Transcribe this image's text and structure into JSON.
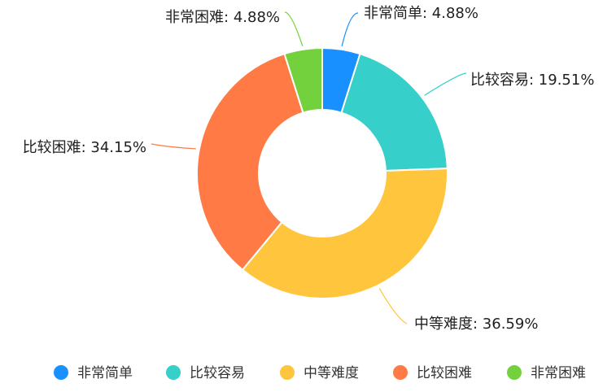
{
  "chart_data": {
    "type": "pie",
    "style": "donut",
    "categories": [
      "非常简单",
      "比较容易",
      "中等难度",
      "比较困难",
      "非常困难"
    ],
    "values": [
      4.88,
      19.51,
      36.59,
      34.15,
      4.88
    ],
    "labels": [
      "非常简单: 4.88%",
      "比较容易: 19.51%",
      "中等难度: 36.59%",
      "比较困难: 34.15%",
      "非常困难: 4.88%"
    ],
    "colors": [
      "#1890ff",
      "#36cfc9",
      "#ffc53d",
      "#ff7a45",
      "#73d13d"
    ],
    "legend_position": "bottom",
    "start_angle": "top, clockwise"
  }
}
